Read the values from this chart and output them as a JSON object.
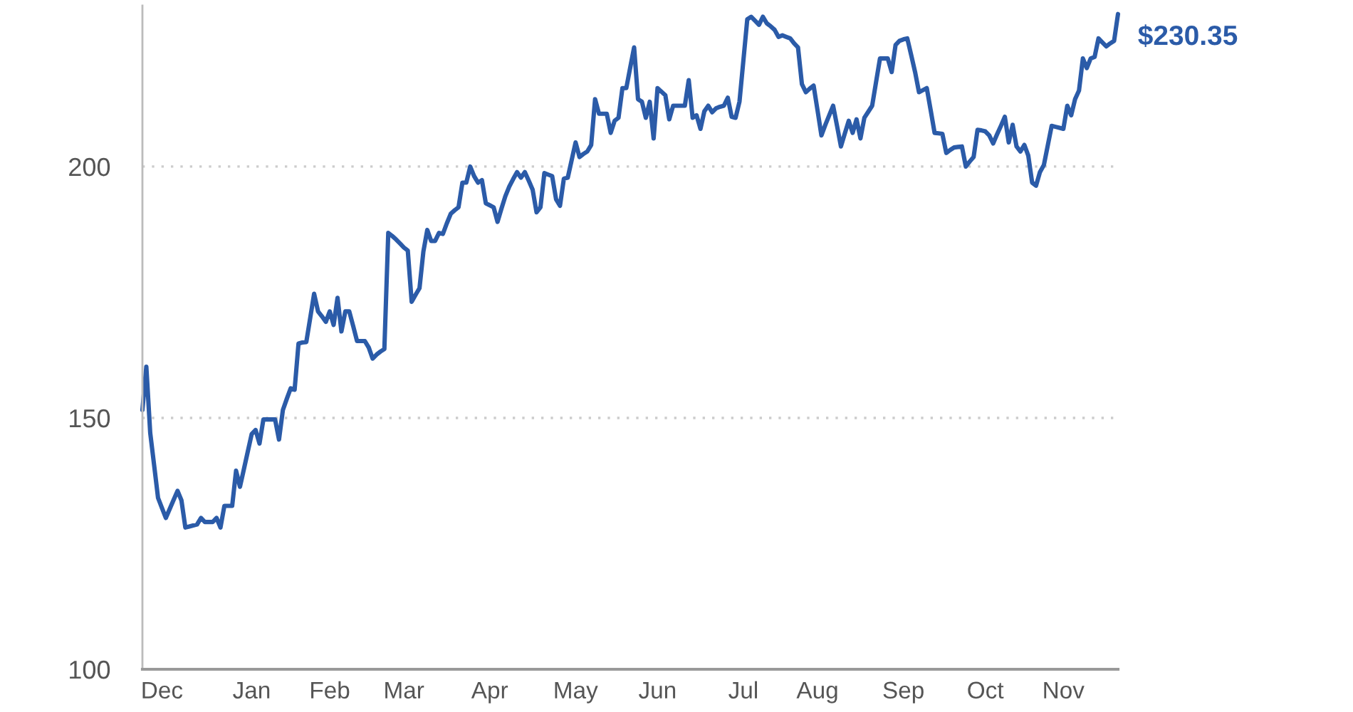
{
  "chart_data": {
    "type": "line",
    "categories": [
      null,
      null,
      null,
      null,
      null,
      "Dec",
      null,
      null,
      null,
      null,
      null,
      null,
      null,
      null,
      null,
      null,
      null,
      null,
      null,
      null,
      null,
      null,
      null,
      null,
      null,
      null,
      null,
      null,
      "Jan",
      null,
      null,
      null,
      null,
      null,
      null,
      null,
      null,
      null,
      null,
      null,
      null,
      null,
      null,
      null,
      null,
      null,
      null,
      null,
      "Feb",
      null,
      null,
      null,
      null,
      null,
      null,
      null,
      null,
      null,
      null,
      null,
      null,
      null,
      null,
      null,
      null,
      null,
      null,
      "Mar",
      null,
      null,
      null,
      null,
      null,
      null,
      null,
      null,
      null,
      null,
      null,
      null,
      null,
      null,
      null,
      null,
      null,
      null,
      null,
      null,
      null,
      "Apr",
      null,
      null,
      null,
      null,
      null,
      null,
      null,
      null,
      null,
      null,
      null,
      null,
      null,
      null,
      null,
      null,
      null,
      null,
      null,
      null,
      null,
      "May",
      null,
      null,
      null,
      null,
      null,
      null,
      null,
      null,
      null,
      null,
      null,
      null,
      null,
      null,
      null,
      null,
      null,
      null,
      null,
      null,
      "Jun",
      null,
      null,
      null,
      null,
      null,
      null,
      null,
      null,
      null,
      null,
      null,
      null,
      null,
      null,
      null,
      null,
      null,
      null,
      null,
      null,
      null,
      "Jul",
      null,
      null,
      null,
      null,
      null,
      null,
      null,
      null,
      null,
      null,
      null,
      null,
      null,
      null,
      null,
      null,
      null,
      null,
      "Aug",
      null,
      null,
      null,
      null,
      null,
      null,
      null,
      null,
      null,
      null,
      null,
      null,
      null,
      null,
      null,
      null,
      null,
      null,
      null,
      null,
      null,
      "Sep",
      null,
      null,
      null,
      null,
      null,
      null,
      null,
      null,
      null,
      null,
      null,
      null,
      null,
      null,
      null,
      null,
      null,
      null,
      null,
      null,
      "Oct",
      null,
      null,
      null,
      null,
      null,
      null,
      null,
      null,
      null,
      null,
      null,
      null,
      null,
      null,
      null,
      null,
      null,
      null,
      null,
      "Nov",
      null,
      null,
      null,
      null,
      null,
      null,
      null,
      null,
      null,
      null,
      null,
      null,
      null,
      null
    ],
    "series": [
      {
        "color": "#2b5ba8",
        "values": [
          151.6,
          160.2,
          147.0,
          140.6,
          134.1,
          132.1,
          130.1,
          131.9,
          133.7,
          135.5,
          133.6,
          128.2,
          128.4,
          128.6,
          128.8,
          130.1,
          129.3,
          129.3,
          129.3,
          130.1,
          128.2,
          132.5,
          132.5,
          132.5,
          139.5,
          136.3,
          139.8,
          143.3,
          146.8,
          147.6,
          144.9,
          149.7,
          149.7,
          149.7,
          149.7,
          145.7,
          151.6,
          153.8,
          155.9,
          155.6,
          164.8,
          165.0,
          165.1,
          169.9,
          174.7,
          171.2,
          170.2,
          169.1,
          171.2,
          168.5,
          173.9,
          167.2,
          171.2,
          171.2,
          168.3,
          165.3,
          165.3,
          165.3,
          164.0,
          161.8,
          162.6,
          163.2,
          163.7,
          186.8,
          186.2,
          185.5,
          184.7,
          183.9,
          183.3,
          173.1,
          174.5,
          175.8,
          183.1,
          187.4,
          185.2,
          185.2,
          186.8,
          186.6,
          188.7,
          190.6,
          191.3,
          191.9,
          196.8,
          196.8,
          200.0,
          198.1,
          196.8,
          197.3,
          192.7,
          192.3,
          191.9,
          189.0,
          191.6,
          194.1,
          196.0,
          197.5,
          198.9,
          197.8,
          198.9,
          197.2,
          195.4,
          190.9,
          191.9,
          198.7,
          198.4,
          198.1,
          193.5,
          192.2,
          197.6,
          197.8,
          201.3,
          204.8,
          201.9,
          202.5,
          203.0,
          204.3,
          213.4,
          210.5,
          210.5,
          210.5,
          206.7,
          209.1,
          209.7,
          215.6,
          215.6,
          219.7,
          223.7,
          213.4,
          212.9,
          209.7,
          212.9,
          205.6,
          215.6,
          214.9,
          214.2,
          209.4,
          212.1,
          212.1,
          212.1,
          212.1,
          217.2,
          209.7,
          210.2,
          207.5,
          211.0,
          212.1,
          210.8,
          211.6,
          211.9,
          212.1,
          213.7,
          209.9,
          209.7,
          212.9,
          221.1,
          229.3,
          229.8,
          229.0,
          228.2,
          229.8,
          228.5,
          227.9,
          227.2,
          225.8,
          226.1,
          225.8,
          225.5,
          224.5,
          223.7,
          216.4,
          214.8,
          215.5,
          216.1,
          211.2,
          206.2,
          208.3,
          210.2,
          212.1,
          208.1,
          204.0,
          206.6,
          209.1,
          206.7,
          209.4,
          205.6,
          209.7,
          210.9,
          212.1,
          216.8,
          221.5,
          221.5,
          221.5,
          218.8,
          224.2,
          225.0,
          225.3,
          225.5,
          222.2,
          218.8,
          214.8,
          215.2,
          215.6,
          211.2,
          206.7,
          206.6,
          206.5,
          202.7,
          203.3,
          203.8,
          203.9,
          204.0,
          200.0,
          201.0,
          201.9,
          207.3,
          207.2,
          207.0,
          206.2,
          204.6,
          206.4,
          208.1,
          209.9,
          204.8,
          208.3,
          204.0,
          203.0,
          204.3,
          202.2,
          196.8,
          196.2,
          198.9,
          200.3,
          204.2,
          208.1,
          207.9,
          207.7,
          207.5,
          212.1,
          210.2,
          213.4,
          215.1,
          221.5,
          219.6,
          221.5,
          221.8,
          225.5,
          224.7,
          223.9,
          224.5,
          225.0,
          230.35
        ],
        "value_labels": [
          null,
          null,
          null,
          null,
          null,
          null,
          null,
          null,
          null,
          null,
          null,
          null,
          null,
          null,
          null,
          null,
          null,
          null,
          null,
          null,
          null,
          null,
          null,
          null,
          null,
          null,
          null,
          null,
          null,
          null,
          null,
          null,
          null,
          null,
          null,
          null,
          null,
          null,
          null,
          null,
          null,
          null,
          null,
          null,
          null,
          null,
          null,
          null,
          null,
          null,
          null,
          null,
          null,
          null,
          null,
          null,
          null,
          null,
          null,
          null,
          null,
          null,
          null,
          null,
          null,
          null,
          null,
          null,
          null,
          null,
          null,
          null,
          null,
          null,
          null,
          null,
          null,
          null,
          null,
          null,
          null,
          null,
          null,
          null,
          null,
          null,
          null,
          null,
          null,
          null,
          null,
          null,
          null,
          null,
          null,
          null,
          null,
          null,
          null,
          null,
          null,
          null,
          null,
          null,
          null,
          null,
          null,
          null,
          null,
          null,
          null,
          null,
          null,
          null,
          null,
          null,
          null,
          null,
          null,
          null,
          null,
          null,
          null,
          null,
          null,
          null,
          null,
          null,
          null,
          null,
          null,
          null,
          null,
          null,
          null,
          null,
          null,
          null,
          null,
          null,
          null,
          null,
          null,
          null,
          null,
          null,
          null,
          null,
          null,
          null,
          null,
          null,
          null,
          null,
          null,
          null,
          null,
          null,
          null,
          null,
          null,
          null,
          null,
          null,
          null,
          null,
          null,
          null,
          null,
          null,
          null,
          null,
          null,
          null,
          null,
          null,
          null,
          null,
          null,
          null,
          null,
          null,
          null,
          null,
          null,
          null,
          null,
          null,
          null,
          null,
          null,
          null,
          null,
          null,
          null,
          null,
          null,
          null,
          null,
          null,
          null,
          null,
          null,
          null,
          null,
          null,
          null,
          null,
          null,
          null,
          null,
          null,
          null,
          null,
          null,
          null,
          null,
          null,
          null,
          null,
          null,
          null,
          null,
          null,
          null,
          null,
          null,
          null,
          null,
          null,
          null,
          null,
          null,
          null,
          null,
          null,
          null,
          null,
          null,
          null,
          null,
          null,
          null,
          null,
          null,
          null,
          null,
          null,
          null,
          null,
          "$230.35"
        ]
      }
    ],
    "ylim": [
      100,
      232
    ],
    "yticks": [
      100,
      150,
      200
    ],
    "grid": "y"
  }
}
